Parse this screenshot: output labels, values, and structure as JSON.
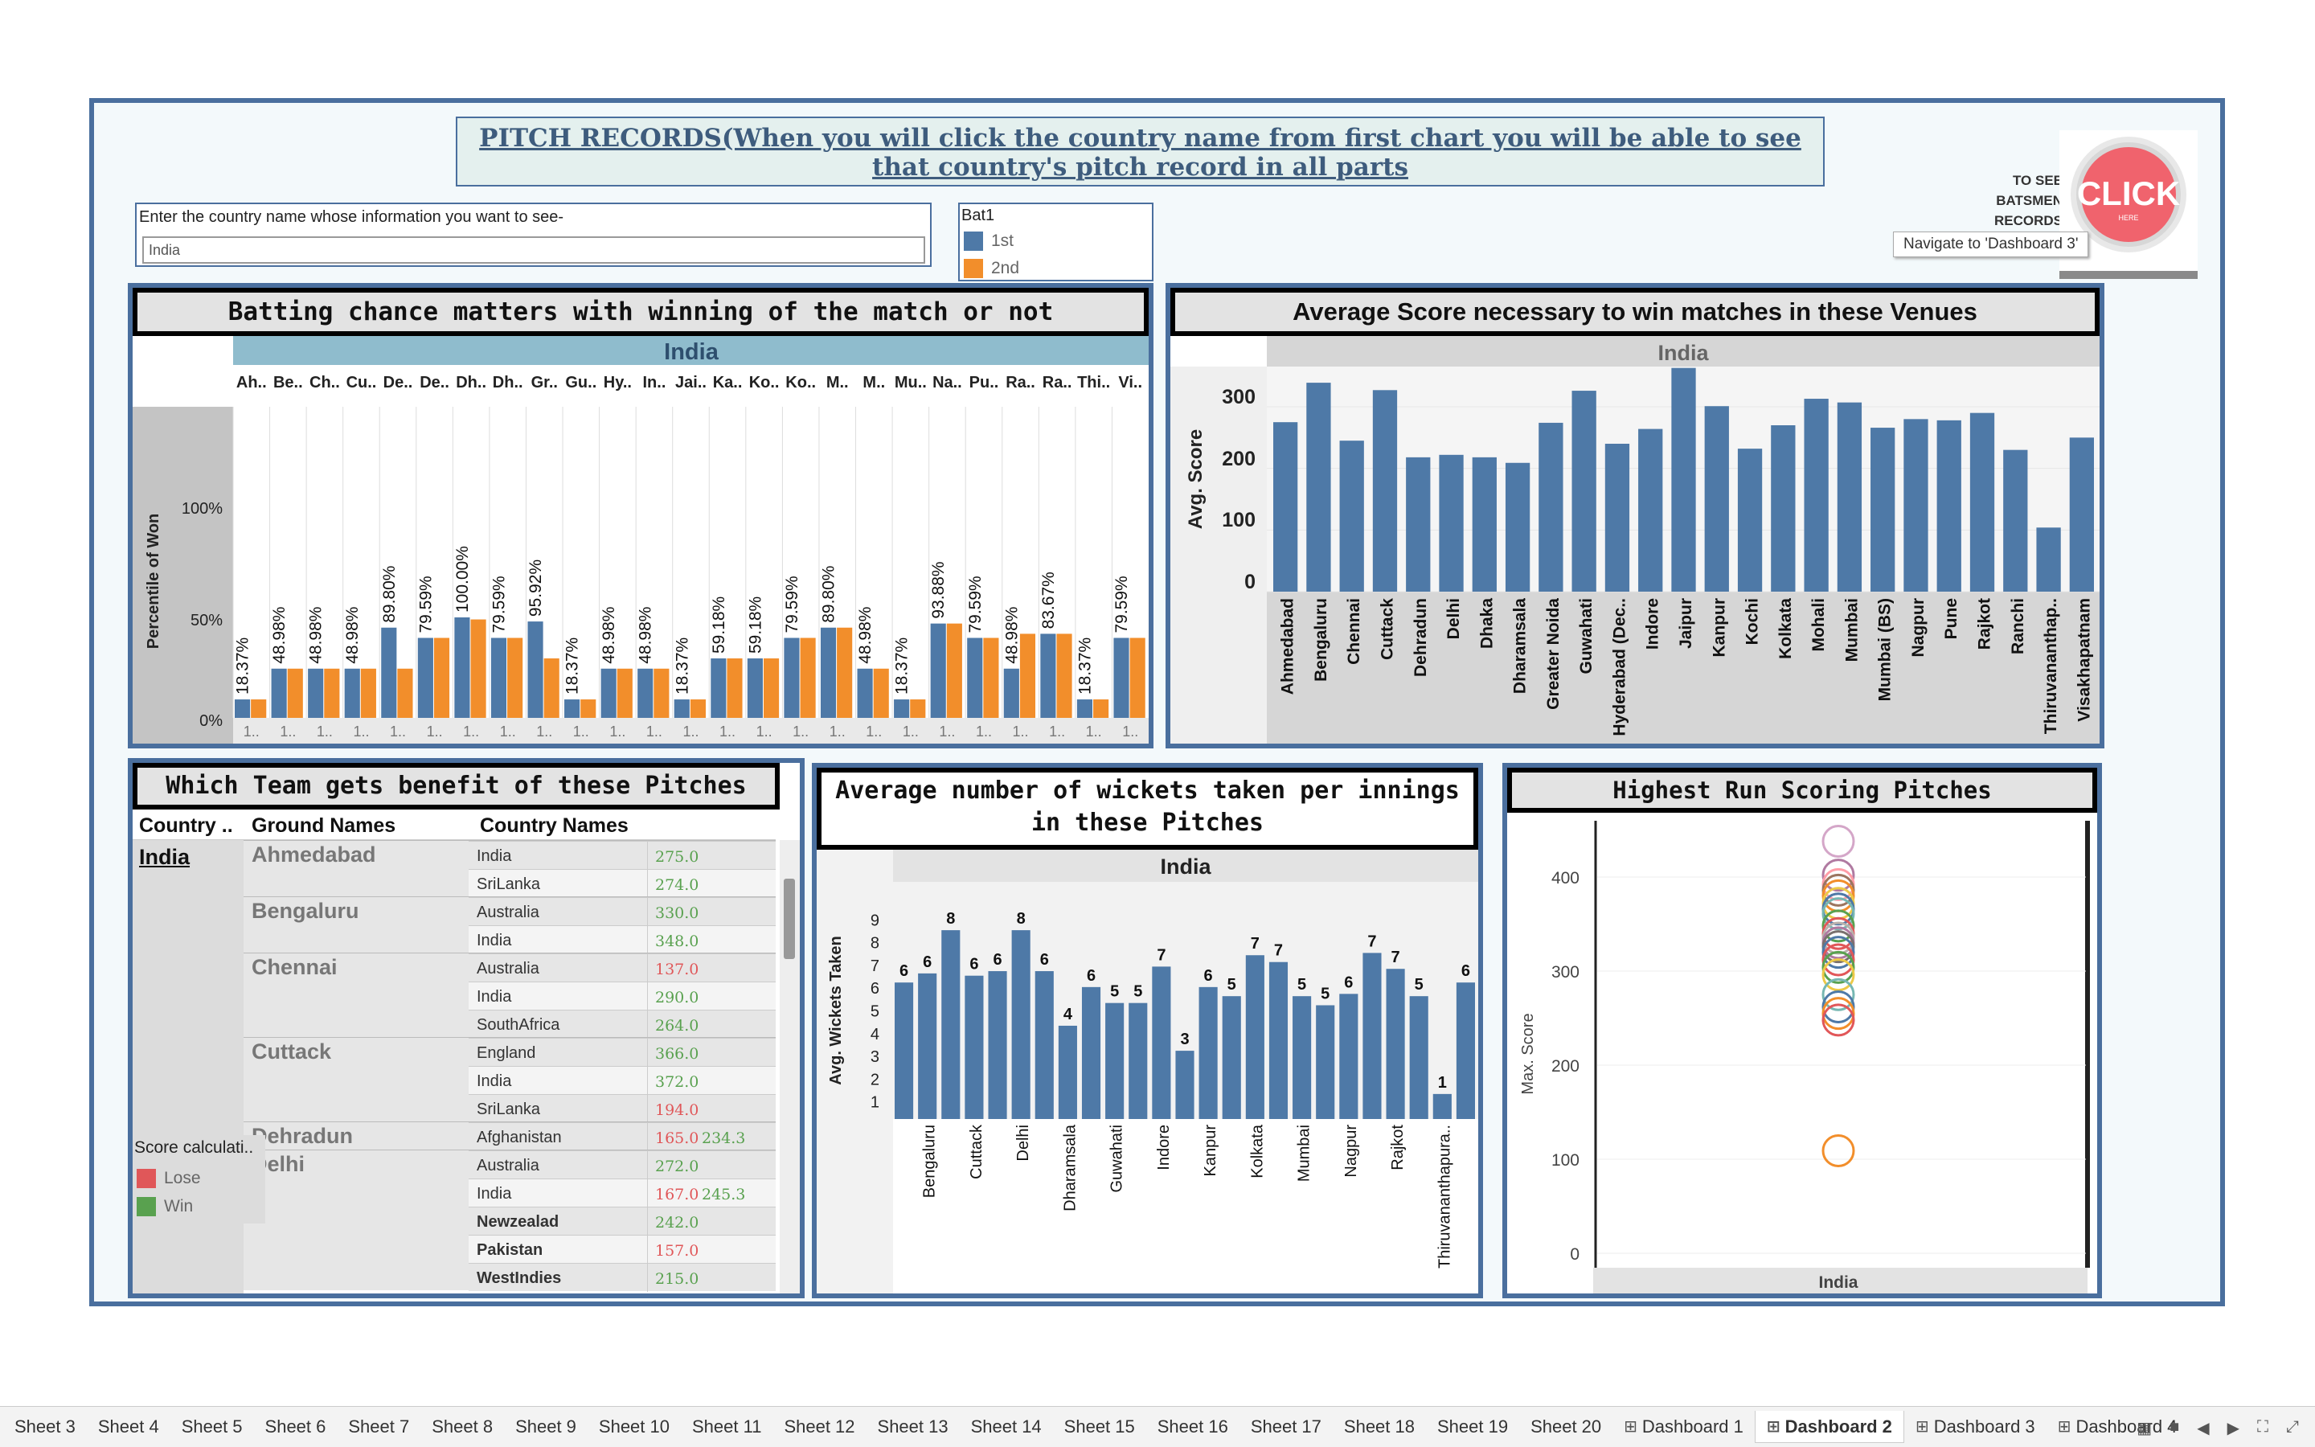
{
  "dashboard": {
    "title": "PITCH RECORDS(When you will click the country name from first chart you will be able to see that country's pitch record in all parts",
    "filter": {
      "label": "Enter the country name whose information you want to see-",
      "value": "India"
    },
    "bat_legend": {
      "title": "Bat1",
      "items": [
        {
          "label": "1st",
          "color": "#4e79a7"
        },
        {
          "label": "2nd",
          "color": "#f28e2b"
        }
      ]
    },
    "nav": {
      "see_batsmen": "TO SEE BATSMEN RECORDS",
      "click_text": "CLICK",
      "click_sub": "HERE",
      "tooltip": "Navigate to 'Dashboard 3'"
    }
  },
  "charts": {
    "batting": {
      "title": "Batting chance matters with winning of the match or not",
      "header": "India",
      "ylabel": "Percentile of Won",
      "yticks": [
        "100%",
        "50%",
        "0%"
      ],
      "col_labels": [
        "Ah..",
        "Be..",
        "Ch..",
        "Cu..",
        "De..",
        "De..",
        "Dh..",
        "Dh..",
        "Gr..",
        "Gu..",
        "Hy..",
        "In..",
        "Jai..",
        "Ka..",
        "Ko..",
        "Ko..",
        "M..",
        "M..",
        "Mu..",
        "Na..",
        "Pu..",
        "Ra..",
        "Ra..",
        "Thi..",
        "Vi.."
      ],
      "bottom_label": "1..",
      "bar_labels": [
        "18.37%",
        "48.98%",
        "48.98%",
        "48.98%",
        "89.80%",
        "79.59%",
        "100.00%",
        "79.59%",
        "95.92%",
        "18.37%",
        "48.98%",
        "48.98%",
        "18.37%",
        "59.18%",
        "59.18%",
        "79.59%",
        "89.80%",
        "48.98%",
        "18.37%",
        "93.88%",
        "79.59%",
        "48.98%",
        "83.67%",
        "18.37%",
        "79.59%"
      ]
    },
    "avg_score": {
      "title": "Average Score necessary to win matches in these Venues",
      "header": "India",
      "ylabel": "Avg. Score",
      "yticks": [
        "300",
        "200",
        "100",
        "0"
      ],
      "categories": [
        "Ahmedabad",
        "Bengaluru",
        "Chennai",
        "Cuttack",
        "Dehradun",
        "Delhi",
        "Dhaka",
        "Dharamsala",
        "Greater Noida",
        "Guwahati",
        "Hyderabad (Dec..",
        "Indore",
        "Jaipur",
        "Kanpur",
        "Kochi",
        "Kolkata",
        "Mohali",
        "Mumbai",
        "Mumbai (BS)",
        "Nagpur",
        "Pune",
        "Rajkot",
        "Ranchi",
        "Thiruvananthap..",
        "Visakhapatnam"
      ]
    },
    "team_table": {
      "title": "Which Team gets benefit of these Pitches",
      "headers": [
        "Country ..",
        "Ground Names",
        "Country Names"
      ],
      "country": "India",
      "grounds": [
        {
          "name": "Ahmedabad",
          "rows": [
            {
              "team": "India",
              "score": "275.0",
              "result": "win"
            },
            {
              "team": "SriLanka",
              "score": "274.0",
              "result": "win"
            }
          ]
        },
        {
          "name": "Bengaluru",
          "rows": [
            {
              "team": "Australia",
              "score": "330.0",
              "result": "win"
            },
            {
              "team": "India",
              "score": "348.0",
              "result": "win"
            }
          ]
        },
        {
          "name": "Chennai",
          "rows": [
            {
              "team": "Australia",
              "score": "137.0",
              "result": "lose"
            },
            {
              "team": "India",
              "score": "290.0",
              "result": "win"
            },
            {
              "team": "SouthAfrica",
              "score": "264.0",
              "result": "win"
            }
          ]
        },
        {
          "name": "Cuttack",
          "rows": [
            {
              "team": "England",
              "score": "366.0",
              "result": "win"
            },
            {
              "team": "India",
              "score": "372.0",
              "result": "win"
            },
            {
              "team": "SriLanka",
              "score": "194.0",
              "result": "lose"
            }
          ]
        },
        {
          "name": "Dehradun",
          "rows": [
            {
              "team": "Afghanistan",
              "score": "165.0",
              "result": "lose",
              "extra": "234.3"
            }
          ]
        },
        {
          "name": "Delhi",
          "rows": [
            {
              "team": "Australia",
              "score": "272.0",
              "result": "win"
            },
            {
              "team": "India",
              "score": "167.0",
              "result": "lose",
              "extra": "245.3"
            },
            {
              "team": "Newzealad",
              "score": "242.0",
              "result": "win"
            },
            {
              "team": "Pakistan",
              "score": "157.0",
              "result": "lose"
            },
            {
              "team": "WestIndies",
              "score": "215.0",
              "result": "win"
            }
          ]
        }
      ],
      "legend": {
        "title": "Score calculati..",
        "items": [
          {
            "label": "Lose",
            "color": "#e05759"
          },
          {
            "label": "Win",
            "color": "#59a14f"
          }
        ]
      }
    },
    "wickets": {
      "title": "Average number of wickets taken per innings in these Pitches",
      "header": "India",
      "ylabel": "Avg. Wickets Taken",
      "yticks": [
        "9",
        "8",
        "7",
        "6",
        "5",
        "4",
        "3",
        "2",
        "1"
      ],
      "x_labels": [
        "Bengaluru",
        "Cuttack",
        "Delhi",
        "Dharamsala",
        "Guwahati",
        "Indore",
        "Kanpur",
        "Kolkata",
        "Mumbai",
        "Nagpur",
        "Rajkot",
        "Thiruvananthapura.."
      ],
      "bar_labels": [
        "6",
        "6",
        "8",
        "6",
        "6",
        "8",
        "6",
        "4",
        "6",
        "5",
        "5",
        "7",
        "3",
        "6",
        "5",
        "7",
        "7",
        "5",
        "5",
        "6",
        "7",
        "7",
        "5",
        "1",
        "6"
      ]
    },
    "highest": {
      "title": "Highest Run Scoring Pitches",
      "ylabel": "Max. Score",
      "yticks": [
        "400",
        "300",
        "200",
        "100",
        "0"
      ],
      "xlabel": "India"
    }
  },
  "chart_data": [
    {
      "type": "bar",
      "title": "Batting chance matters with winning of the match or not",
      "ylabel": "Percentile of Won",
      "ylim": [
        0,
        110
      ],
      "categories": [
        "Ah..",
        "Be..",
        "Ch..",
        "Cu..",
        "De..",
        "De..",
        "Dh..",
        "Dh..",
        "Gr..",
        "Gu..",
        "Hy..",
        "In..",
        "Jai..",
        "Ka..",
        "Ko..",
        "Ko..",
        "M..",
        "M..",
        "Mu..",
        "Na..",
        "Pu..",
        "Ra..",
        "Ra..",
        "Thi..",
        "Vi.."
      ],
      "series": [
        {
          "name": "1st",
          "values": [
            18.37,
            48.98,
            48.98,
            48.98,
            89.8,
            79.59,
            100.0,
            79.59,
            95.92,
            18.37,
            48.98,
            48.98,
            18.37,
            59.18,
            59.18,
            79.59,
            89.8,
            48.98,
            18.37,
            93.88,
            79.59,
            48.98,
            83.67,
            18.37,
            79.59
          ]
        },
        {
          "name": "2nd",
          "values": [
            18.37,
            48.98,
            48.98,
            48.98,
            48.98,
            79.59,
            97.96,
            79.59,
            59.18,
            18.37,
            48.98,
            48.98,
            18.37,
            59.18,
            59.18,
            79.59,
            89.8,
            48.98,
            18.37,
            93.88,
            79.59,
            83.67,
            83.67,
            18.37,
            79.59
          ]
        }
      ]
    },
    {
      "type": "bar",
      "title": "Average Score necessary to win matches in these Venues",
      "ylabel": "Avg. Score",
      "ylim": [
        0,
        390
      ],
      "categories": [
        "Ahmedabad",
        "Bengaluru",
        "Chennai",
        "Cuttack",
        "Dehradun",
        "Delhi",
        "Dhaka",
        "Dharamsala",
        "Greater Noida",
        "Guwahati",
        "Hyderabad (Dec..",
        "Indore",
        "Jaipur",
        "Kanpur",
        "Kochi",
        "Kolkata",
        "Mohali",
        "Mumbai",
        "Mumbai (BS)",
        "Nagpur",
        "Pune",
        "Rajkot",
        "Ranchi",
        "Thiruvananthap..",
        "Visakhapatnam"
      ],
      "values": [
        275,
        339,
        245,
        327,
        218,
        222,
        218,
        209,
        274,
        326,
        240,
        264,
        363,
        301,
        232,
        270,
        313,
        307,
        266,
        280,
        278,
        290,
        230,
        104,
        250
      ]
    },
    {
      "type": "bar",
      "title": "Average number of wickets taken per innings in these Pitches",
      "ylabel": "Avg. Wickets Taken",
      "ylim": [
        0,
        9.5
      ],
      "values": [
        6.0,
        6.4,
        8.3,
        6.3,
        6.5,
        8.3,
        6.5,
        4.1,
        5.8,
        5.1,
        5.1,
        6.7,
        3.0,
        5.8,
        5.4,
        7.2,
        6.9,
        5.4,
        5.0,
        5.5,
        7.3,
        6.6,
        5.4,
        1.1,
        6.0
      ]
    },
    {
      "type": "scatter",
      "title": "Highest Run Scoring Pitches",
      "ylabel": "Max. Score",
      "ylim": [
        0,
        440
      ],
      "x": "India",
      "values": [
        438,
        402,
        392,
        386,
        380,
        372,
        366,
        361,
        348,
        340,
        335,
        330,
        326,
        320,
        312,
        304,
        296,
        275,
        262,
        255,
        248,
        109
      ]
    }
  ],
  "tabs": [
    {
      "label": "Sheet 3"
    },
    {
      "label": "Sheet 4"
    },
    {
      "label": "Sheet 5"
    },
    {
      "label": "Sheet 6"
    },
    {
      "label": "Sheet 7"
    },
    {
      "label": "Sheet 8"
    },
    {
      "label": "Sheet 9"
    },
    {
      "label": "Sheet 10"
    },
    {
      "label": "Sheet 11"
    },
    {
      "label": "Sheet 12"
    },
    {
      "label": "Sheet 13"
    },
    {
      "label": "Sheet 14"
    },
    {
      "label": "Sheet 15"
    },
    {
      "label": "Sheet 16"
    },
    {
      "label": "Sheet 17"
    },
    {
      "label": "Sheet 18"
    },
    {
      "label": "Sheet 19"
    },
    {
      "label": "Sheet 20"
    },
    {
      "label": "Dashboard 1",
      "dash": true
    },
    {
      "label": "Dashboard 2",
      "dash": true,
      "active": true
    },
    {
      "label": "Dashboard 3",
      "dash": true
    },
    {
      "label": "Dashboard 4",
      "dash": true
    }
  ],
  "colors": {
    "blue": "#4e79a7",
    "orange": "#f28e2b",
    "win": "#59a14f",
    "lose": "#e05759",
    "frame": "#4a6f9e"
  }
}
